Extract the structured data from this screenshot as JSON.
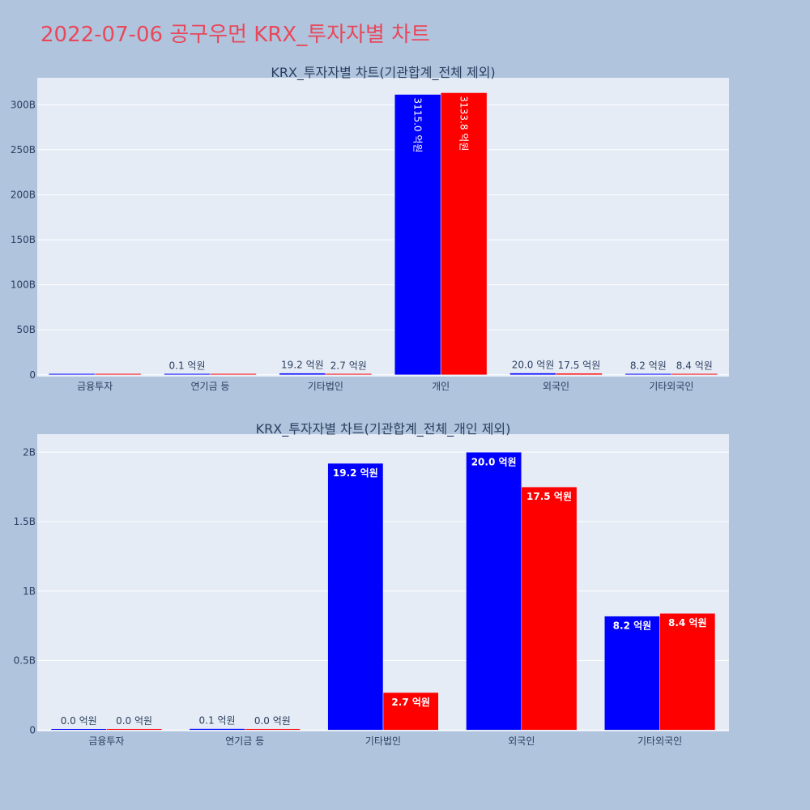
{
  "title": "2022-07-06 공구우먼 KRX_투자자별 차트",
  "colors": {
    "buy": "#0000ff",
    "sell": "#ff0000",
    "plot_bg": "#e5ecf6",
    "page_bg": "#b0c4de",
    "title": "#e8485a"
  },
  "chart_data": [
    {
      "type": "bar",
      "title": "KRX_투자자별 차트(기관합계_전체 제외)",
      "categories": [
        "금융투자",
        "연기금 등",
        "기타법인",
        "개인",
        "외국인",
        "기타외국인"
      ],
      "series": [
        {
          "values": [
            0,
            10000000,
            1920000000,
            311500000000,
            2000000000,
            820000000
          ],
          "labels": [
            "",
            "0.1 억원",
            "19.2 억원",
            "3115.0 억원",
            "20.0 억원",
            "8.2 억원"
          ]
        },
        {
          "values": [
            0,
            0,
            270000000,
            313380000000,
            1750000000,
            840000000
          ],
          "labels": [
            "",
            "",
            "2.7 억원",
            "3133.8 억원",
            "17.5 억원",
            "8.4 억원"
          ]
        }
      ],
      "ylim": [
        -2000000000,
        330000000000
      ],
      "yticks": [
        0,
        50000000000,
        100000000000,
        150000000000,
        200000000000,
        250000000000,
        300000000000
      ],
      "ytick_labels": [
        "0",
        "50B",
        "100B",
        "150B",
        "200B",
        "250B",
        "300B"
      ],
      "grid": true
    },
    {
      "type": "bar",
      "title": "KRX_투자자별 차트(기관합계_전체_개인 제외)",
      "categories": [
        "금융투자",
        "연기금 등",
        "기타법인",
        "외국인",
        "기타외국인"
      ],
      "series": [
        {
          "values": [
            0,
            10000000,
            1920000000,
            2000000000,
            820000000
          ],
          "labels": [
            "0.0 억원",
            "0.1 억원",
            "19.2 억원",
            "20.0 억원",
            "8.2 억원"
          ]
        },
        {
          "values": [
            0,
            0,
            270000000,
            1750000000,
            840000000
          ],
          "labels": [
            "0.0 억원",
            "0.0 억원",
            "2.7 억원",
            "17.5 억원",
            "8.4 억원"
          ]
        }
      ],
      "ylim": [
        -10000000,
        2130000000
      ],
      "yticks": [
        0,
        500000000,
        1000000000,
        1500000000,
        2000000000
      ],
      "ytick_labels": [
        "0",
        "0.5B",
        "1B",
        "1.5B",
        "2B"
      ],
      "grid": true
    }
  ]
}
